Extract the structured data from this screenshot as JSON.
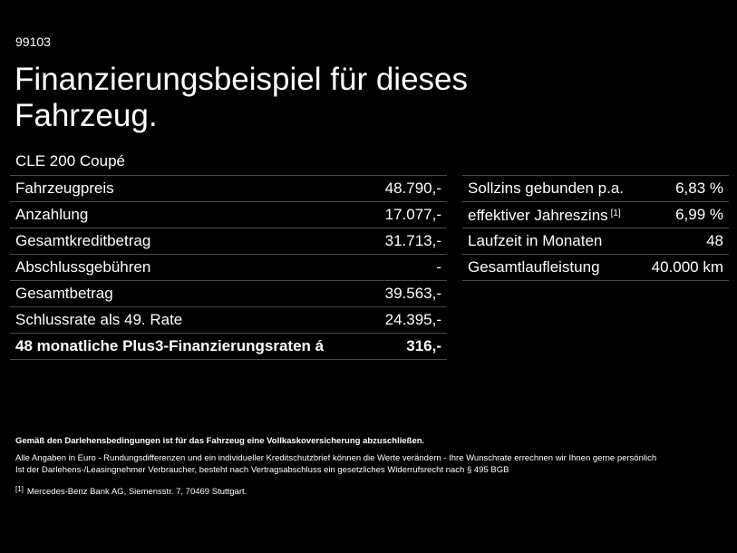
{
  "offer_code": "99103",
  "title": "Finanzierungsbeispiel für dieses Fahrzeug.",
  "model": "CLE 200 Coupé",
  "left_rows": [
    {
      "label": "Fahrzeugpreis",
      "value": "48.790,-"
    },
    {
      "label": "Anzahlung",
      "value": "17.077,-"
    },
    {
      "label": "Gesamtkreditbetrag",
      "value": "31.713,-"
    },
    {
      "label": "Abschlussgebühren",
      "value": "-"
    },
    {
      "label": "Gesamtbetrag",
      "value": "39.563,-"
    },
    {
      "label": "Schlussrate als 49. Rate",
      "value": "24.395,-"
    },
    {
      "label": "48 monatliche Plus3-Finanzierungsraten á",
      "value": "316,-"
    }
  ],
  "right_rows": [
    {
      "label": "Sollzins gebunden p.a.",
      "value": "6,83 %"
    },
    {
      "label": "effektiver Jahreszins",
      "footnote": "[1]",
      "value": "6,99 %"
    },
    {
      "label": "Laufzeit in Monaten",
      "value": "48"
    },
    {
      "label": "Gesamtlaufleistung",
      "value": "40.000 km"
    }
  ],
  "footer": {
    "insurance_note": "Gemäß den Darlehensbedingungen ist für das Fahrzeug eine Vollkaskoversicherung abzuschließen.",
    "line1": "Alle Angaben in Euro - Rundungsdifferenzen und ein individueller Kreditschutzbrief können die Werte verändern - Ihre Wunschrate errechnen wir Ihnen gerne persönlich",
    "line2": "Ist der Darlehens-/Leasingnehmer Verbraucher, besteht nach Vertragsabschluss ein gesetzliches Widerrufsrecht nach § 495 BGB",
    "footnote_mark": "[1]",
    "footnote_text": "Mercedes-Benz Bank AG, Siemensstr. 7, 70469 Stuttgart."
  }
}
